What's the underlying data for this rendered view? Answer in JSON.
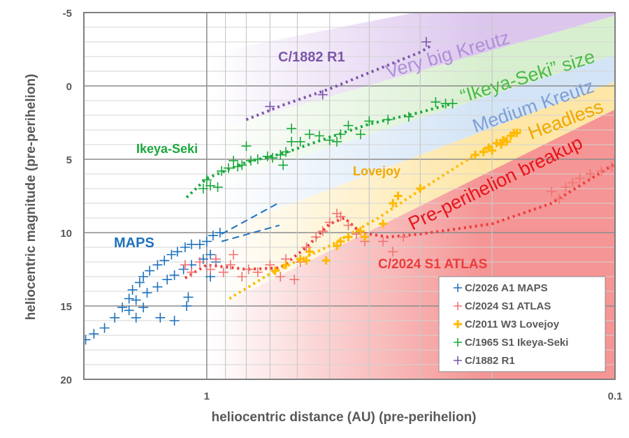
{
  "chart_data": {
    "type": "scatter",
    "xlabel": "heliocentric distance (AU) (pre-perihelion)",
    "ylabel": "heliocentric magnitude (pre-perihelion)",
    "x_scale": "log",
    "x_reversed": true,
    "xlim": [
      2,
      0.1
    ],
    "x_ticks": [
      {
        "value": 1,
        "label": "1"
      },
      {
        "value": 0.1,
        "label": "0.1"
      }
    ],
    "y_reversed": true,
    "ylim": [
      -5,
      20
    ],
    "y_ticks": [
      {
        "value": -5,
        "label": "-5"
      },
      {
        "value": 0,
        "label": "0"
      },
      {
        "value": 5,
        "label": "5"
      },
      {
        "value": 10,
        "label": "10"
      },
      {
        "value": 15,
        "label": "15"
      },
      {
        "value": 20,
        "label": "20"
      }
    ],
    "grid": true,
    "legend_placement": "bottom-right",
    "bands": [
      {
        "label": "Very big Kreutz",
        "color": "#dcc6ee",
        "text_color": "#b08fd8",
        "upper": [
          [
            1,
            -2.2
          ],
          [
            0.31,
            -5
          ]
        ],
        "lower": [
          [
            1,
            3.1
          ],
          [
            0.1,
            -4.8
          ]
        ]
      },
      {
        "label": "“Ikeya-Seki” size",
        "color": "#d8efcf",
        "text_color": "#4cba4c",
        "upper": [
          [
            1,
            3.1
          ],
          [
            0.1,
            -4.8
          ]
        ],
        "lower": [
          [
            1,
            6.9
          ],
          [
            0.1,
            -2.1
          ]
        ]
      },
      {
        "label": "Medium Kreutz",
        "color": "#d3e4f6",
        "text_color": "#7f9fd6",
        "upper": [
          [
            1,
            6.9
          ],
          [
            0.1,
            -2.1
          ]
        ],
        "lower": [
          [
            1,
            10.2
          ],
          [
            0.1,
            -0.3
          ]
        ]
      },
      {
        "label": "Headless",
        "color": "#fde6a6",
        "text_color": "#f0a800",
        "upper": [
          [
            1,
            10.2
          ],
          [
            0.1,
            -0.3
          ]
        ],
        "lower": [
          [
            1,
            15.4
          ],
          [
            0.1,
            1.6
          ]
        ]
      },
      {
        "label": "Pre-perihelion breakup",
        "color": "#f59595",
        "text_color": "#e8141c",
        "upper": [
          [
            1,
            15.4
          ],
          [
            0.1,
            1.6
          ]
        ],
        "lower": [
          [
            1,
            20
          ],
          [
            0.1,
            20
          ]
        ]
      }
    ],
    "series": [
      {
        "name": "C/2026 A1 MAPS",
        "label": "MAPS",
        "color": "#1f72bd",
        "points": [
          [
            1.98,
            17.3
          ],
          [
            1.89,
            16.9
          ],
          [
            1.78,
            16.5
          ],
          [
            1.68,
            15.8
          ],
          [
            1.61,
            15.1
          ],
          [
            1.55,
            14.5
          ],
          [
            1.52,
            13.9
          ],
          [
            1.46,
            13.4
          ],
          [
            1.43,
            13.0
          ],
          [
            1.38,
            12.6
          ],
          [
            1.32,
            12.2
          ],
          [
            1.27,
            11.9
          ],
          [
            1.22,
            11.5
          ],
          [
            1.18,
            11.3
          ],
          [
            1.13,
            11.0
          ],
          [
            1.09,
            10.8
          ],
          [
            1.04,
            10.8
          ],
          [
            1.0,
            10.6
          ],
          [
            0.965,
            10.2
          ],
          [
            0.928,
            10.0
          ],
          [
            1.49,
            14.6
          ],
          [
            1.4,
            14.1
          ],
          [
            1.32,
            13.7
          ],
          [
            1.25,
            13.2
          ],
          [
            1.2,
            12.9
          ],
          [
            1.14,
            12.5
          ],
          [
            1.09,
            12.2
          ],
          [
            1.02,
            11.8
          ],
          [
            0.98,
            11.5
          ],
          [
            1.11,
            14.4
          ],
          [
            1.12,
            15.0
          ],
          [
            1.2,
            16.0
          ],
          [
            1.49,
            15.8
          ],
          [
            1.3,
            15.8
          ],
          [
            0.98,
            13.0
          ],
          [
            0.95,
            12.0
          ],
          [
            1.43,
            15.1
          ],
          [
            1.55,
            15.3
          ]
        ],
        "extrapolations": [
          [
            [
              0.92,
              10.1
            ],
            [
              0.664,
              7.95
            ]
          ],
          [
            [
              0.92,
              10.6
            ],
            [
              0.664,
              9.5
            ]
          ]
        ]
      },
      {
        "name": "C/2024 S1 ATLAS",
        "label": "C/2024 S1 ATLAS",
        "color": "#f27373",
        "trend_color": "#ee3b3b",
        "points": [
          [
            1.13,
            12.2
          ],
          [
            1.09,
            12.7
          ],
          [
            1.04,
            12.0
          ],
          [
            0.98,
            12.5
          ],
          [
            0.95,
            11.8
          ],
          [
            0.91,
            12.7
          ],
          [
            0.875,
            12.2
          ],
          [
            0.86,
            11.5
          ],
          [
            0.82,
            13.0
          ],
          [
            0.79,
            12.5
          ],
          [
            0.75,
            12.7
          ],
          [
            0.7,
            12.2
          ],
          [
            0.66,
            13.0
          ],
          [
            0.64,
            11.8
          ],
          [
            0.61,
            13.2
          ],
          [
            0.59,
            12.0
          ],
          [
            0.57,
            11.0
          ],
          [
            0.54,
            10.3
          ],
          [
            0.52,
            9.9
          ],
          [
            0.5,
            9.3
          ],
          [
            0.48,
            8.7
          ],
          [
            0.47,
            8.9
          ],
          [
            0.45,
            9.5
          ],
          [
            0.43,
            10.1
          ],
          [
            0.41,
            10.6
          ],
          [
            0.37,
            10.6
          ],
          [
            0.35,
            11.3
          ],
          [
            0.33,
            10.3
          ],
          [
            0.143,
            7.2
          ],
          [
            0.137,
            7.7
          ],
          [
            0.132,
            6.9
          ],
          [
            0.127,
            6.6
          ],
          [
            0.122,
            6.3
          ],
          [
            0.115,
            6.0
          ],
          [
            0.108,
            5.8
          ],
          [
            0.102,
            5.5
          ]
        ],
        "trend": [
          [
            1.13,
            13.1
          ],
          [
            1.0,
            12.2
          ],
          [
            0.8,
            12.5
          ],
          [
            0.66,
            12.4
          ],
          [
            0.57,
            11.0
          ],
          [
            0.5,
            9.4
          ],
          [
            0.46,
            9.0
          ],
          [
            0.42,
            10.0
          ],
          [
            0.36,
            10.3
          ],
          [
            0.3,
            10.1
          ],
          [
            0.2,
            9.4
          ],
          [
            0.143,
            8.0
          ],
          [
            0.1,
            5.3
          ]
        ]
      },
      {
        "name": "C/2011 W3 Lovejoy",
        "label": "Lovejoy",
        "color": "#ffb900",
        "points": [
          [
            0.68,
            12.6
          ],
          [
            0.64,
            12.2
          ],
          [
            0.59,
            11.8
          ],
          [
            0.57,
            11.9
          ],
          [
            0.56,
            11.3
          ],
          [
            0.51,
            11.9
          ],
          [
            0.48,
            10.9
          ],
          [
            0.47,
            10.6
          ],
          [
            0.45,
            10.3
          ],
          [
            0.42,
            9.9
          ],
          [
            0.41,
            10.3
          ],
          [
            0.37,
            9.4
          ],
          [
            0.35,
            8.0
          ],
          [
            0.34,
            7.5
          ],
          [
            0.3,
            7.0
          ],
          [
            0.22,
            4.7
          ],
          [
            0.21,
            4.5
          ],
          [
            0.204,
            4.2
          ],
          [
            0.195,
            3.9
          ],
          [
            0.188,
            3.7
          ],
          [
            0.18,
            3.4
          ],
          [
            0.174,
            3.2
          ],
          [
            0.2,
            4.4
          ],
          [
            0.19,
            4.0
          ],
          [
            0.184,
            3.8
          ],
          [
            0.177,
            3.2
          ]
        ],
        "trend": [
          [
            0.88,
            14.5
          ],
          [
            0.7,
            12.8
          ],
          [
            0.5,
            10.9
          ],
          [
            0.38,
            9.0
          ],
          [
            0.3,
            7.1
          ],
          [
            0.22,
            4.7
          ],
          [
            0.17,
            3.0
          ]
        ]
      },
      {
        "name": "C/1965 S1 Ikeya-Seki",
        "label": "Ikeya-Seki",
        "color": "#19a83c",
        "points": [
          [
            1.02,
            7.0
          ],
          [
            1.0,
            6.4
          ],
          [
            0.98,
            6.8
          ],
          [
            0.94,
            6.9
          ],
          [
            0.92,
            5.8
          ],
          [
            0.885,
            5.6
          ],
          [
            0.86,
            5.1
          ],
          [
            0.84,
            5.5
          ],
          [
            0.82,
            5.4
          ],
          [
            0.8,
            4.1
          ],
          [
            0.78,
            5.1
          ],
          [
            0.75,
            5.0
          ],
          [
            0.71,
            4.8
          ],
          [
            0.69,
            4.9
          ],
          [
            0.66,
            4.7
          ],
          [
            0.65,
            5.4
          ],
          [
            0.64,
            4.5
          ],
          [
            0.62,
            2.9
          ],
          [
            0.62,
            3.8
          ],
          [
            0.59,
            3.8
          ],
          [
            0.56,
            3.3
          ],
          [
            0.53,
            3.4
          ],
          [
            0.5,
            3.7
          ],
          [
            0.48,
            3.8
          ],
          [
            0.47,
            3.3
          ],
          [
            0.45,
            2.7
          ],
          [
            0.42,
            3.3
          ],
          [
            0.4,
            2.4
          ],
          [
            0.36,
            2.3
          ],
          [
            0.32,
            2.1
          ],
          [
            0.275,
            1.1
          ],
          [
            0.26,
            1.2
          ],
          [
            0.25,
            1.2
          ]
        ],
        "trend": [
          [
            1.12,
            7.6
          ],
          [
            1.0,
            6.3
          ],
          [
            0.8,
            5.2
          ],
          [
            0.65,
            4.6
          ],
          [
            0.5,
            3.5
          ],
          [
            0.4,
            2.6
          ],
          [
            0.3,
            1.8
          ],
          [
            0.25,
            1.2
          ]
        ]
      },
      {
        "name": "C/1882 R1",
        "label": "C/1882 R1",
        "color": "#7d56a8",
        "points": [
          [
            0.7,
            1.4
          ],
          [
            0.52,
            0.6
          ],
          [
            0.29,
            -3.0
          ]
        ],
        "trend": [
          [
            0.8,
            2.3
          ],
          [
            0.65,
            1.3
          ],
          [
            0.5,
            0.2
          ],
          [
            0.4,
            -0.9
          ],
          [
            0.3,
            -2.3
          ],
          [
            0.28,
            -2.8
          ]
        ]
      }
    ]
  }
}
